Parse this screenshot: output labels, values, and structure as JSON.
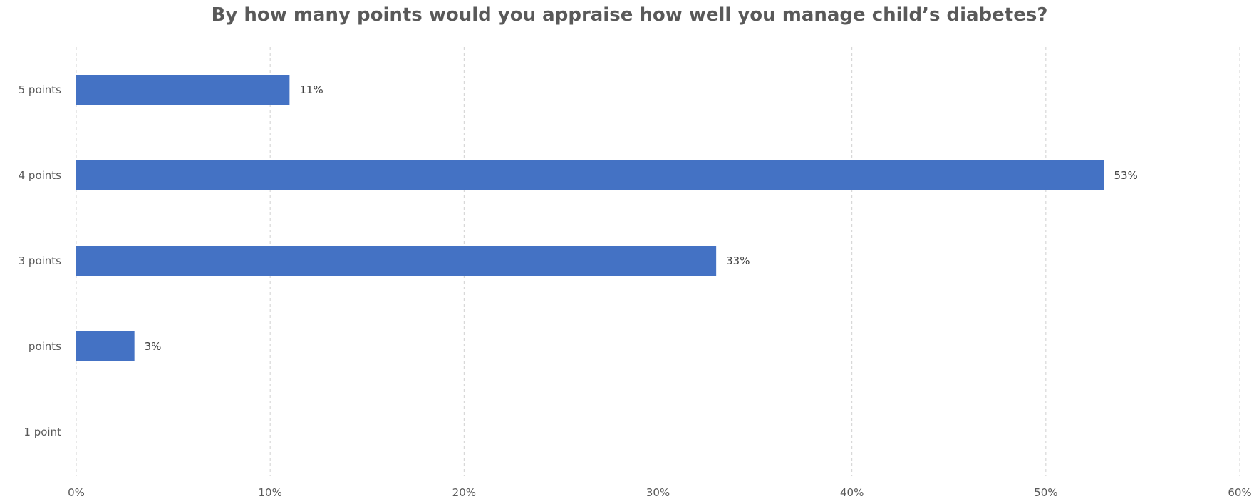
{
  "chart_data": {
    "type": "bar",
    "orientation": "horizontal",
    "title": "By how many points would you appraise how well you manage child’s diabetes?",
    "categories": [
      "5 points",
      "4 points",
      "3 points",
      "points",
      "1 point"
    ],
    "values": [
      11,
      53,
      33,
      3,
      0
    ],
    "data_labels": [
      "11%",
      "53%",
      "33%",
      "3%",
      ""
    ],
    "x_ticks": [
      "0%",
      "10%",
      "20%",
      "30%",
      "40%",
      "50%",
      "60%"
    ],
    "xlim": [
      0,
      60
    ],
    "grid": true,
    "legend": "none",
    "bar_color": "#4472C4"
  }
}
